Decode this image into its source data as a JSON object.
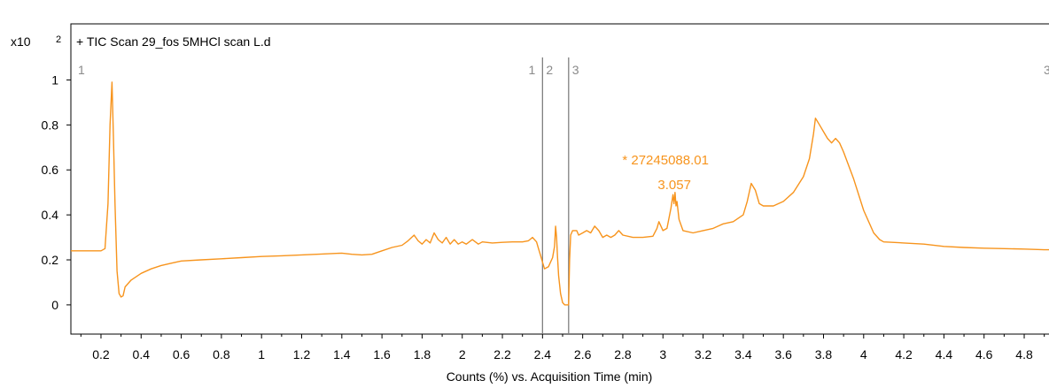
{
  "chart_data": {
    "type": "line",
    "title": "+ TIC Scan 29_fos 5MHCl scan L.d",
    "xlabel": "Counts (%) vs. Acquisition Time (min)",
    "ylabel": "",
    "y_exponent": {
      "base": "x10",
      "power": "2"
    },
    "xlim": [
      0.05,
      4.95
    ],
    "ylim": [
      -0.13,
      1.1
    ],
    "x_ticks": [
      0.2,
      0.4,
      0.6,
      0.8,
      1,
      1.2,
      1.4,
      1.6,
      1.8,
      2,
      2.2,
      2.4,
      2.6,
      2.8,
      3,
      3.2,
      3.4,
      3.6,
      3.8,
      4,
      4.2,
      4.4,
      4.6,
      4.8
    ],
    "x_tick_labels": [
      "0.2",
      "0.4",
      "0.6",
      "0.8",
      "1",
      "1.2",
      "1.4",
      "1.6",
      "1.8",
      "2",
      "2.2",
      "2.4",
      "2.6",
      "2.8",
      "3",
      "3.2",
      "3.4",
      "3.6",
      "3.8",
      "4",
      "4.2",
      "4.4",
      "4.6",
      "4.8"
    ],
    "y_ticks": [
      0,
      0.2,
      0.4,
      0.6,
      0.8,
      1
    ],
    "y_tick_labels": [
      "0",
      "0.2",
      "0.4",
      "0.6",
      "0.8",
      "1"
    ],
    "grid": false,
    "line_color": "#f7941d",
    "annotation_color": "#f7941d",
    "marker_color": "#7f7f7f",
    "segment_markers": [
      {
        "x": 2.4,
        "left_label": "1",
        "right_label": "2"
      },
      {
        "x": 2.53,
        "right_label": "3"
      }
    ],
    "edge_markers": {
      "left_label": "1",
      "right_label": "3"
    },
    "peak_annotation": {
      "x": 3.057,
      "y": 0.5,
      "area_label": "* 27245088.01",
      "rt_label": "3.057"
    },
    "series": [
      {
        "values": [
          [
            0.05,
            0.24
          ],
          [
            0.12,
            0.24
          ],
          [
            0.2,
            0.24
          ],
          [
            0.22,
            0.25
          ],
          [
            0.235,
            0.45
          ],
          [
            0.245,
            0.8
          ],
          [
            0.255,
            0.99
          ],
          [
            0.262,
            0.75
          ],
          [
            0.27,
            0.45
          ],
          [
            0.28,
            0.15
          ],
          [
            0.29,
            0.05
          ],
          [
            0.3,
            0.035
          ],
          [
            0.31,
            0.04
          ],
          [
            0.32,
            0.08
          ],
          [
            0.35,
            0.11
          ],
          [
            0.4,
            0.14
          ],
          [
            0.45,
            0.16
          ],
          [
            0.5,
            0.175
          ],
          [
            0.55,
            0.185
          ],
          [
            0.6,
            0.195
          ],
          [
            0.7,
            0.2
          ],
          [
            0.8,
            0.205
          ],
          [
            0.9,
            0.21
          ],
          [
            1.0,
            0.215
          ],
          [
            1.1,
            0.218
          ],
          [
            1.2,
            0.222
          ],
          [
            1.3,
            0.226
          ],
          [
            1.4,
            0.23
          ],
          [
            1.45,
            0.225
          ],
          [
            1.5,
            0.222
          ],
          [
            1.55,
            0.225
          ],
          [
            1.6,
            0.24
          ],
          [
            1.65,
            0.255
          ],
          [
            1.7,
            0.265
          ],
          [
            1.73,
            0.285
          ],
          [
            1.76,
            0.31
          ],
          [
            1.78,
            0.285
          ],
          [
            1.8,
            0.27
          ],
          [
            1.82,
            0.29
          ],
          [
            1.84,
            0.275
          ],
          [
            1.86,
            0.32
          ],
          [
            1.88,
            0.29
          ],
          [
            1.9,
            0.275
          ],
          [
            1.92,
            0.3
          ],
          [
            1.94,
            0.27
          ],
          [
            1.96,
            0.29
          ],
          [
            1.98,
            0.27
          ],
          [
            2.0,
            0.28
          ],
          [
            2.02,
            0.27
          ],
          [
            2.05,
            0.29
          ],
          [
            2.08,
            0.27
          ],
          [
            2.1,
            0.28
          ],
          [
            2.15,
            0.275
          ],
          [
            2.2,
            0.278
          ],
          [
            2.25,
            0.28
          ],
          [
            2.3,
            0.28
          ],
          [
            2.33,
            0.285
          ],
          [
            2.35,
            0.3
          ],
          [
            2.37,
            0.28
          ],
          [
            2.38,
            0.25
          ],
          [
            2.39,
            0.22
          ],
          [
            2.4,
            0.19
          ],
          [
            2.41,
            0.16
          ],
          [
            2.42,
            0.165
          ],
          [
            2.43,
            0.17
          ],
          [
            2.44,
            0.19
          ],
          [
            2.45,
            0.21
          ],
          [
            2.46,
            0.26
          ],
          [
            2.465,
            0.35
          ],
          [
            2.47,
            0.3
          ],
          [
            2.475,
            0.21
          ],
          [
            2.48,
            0.13
          ],
          [
            2.49,
            0.05
          ],
          [
            2.5,
            0.01
          ],
          [
            2.51,
            0.0
          ],
          [
            2.53,
            0.0
          ],
          [
            2.535,
            0.2
          ],
          [
            2.54,
            0.31
          ],
          [
            2.55,
            0.33
          ],
          [
            2.57,
            0.33
          ],
          [
            2.58,
            0.31
          ],
          [
            2.6,
            0.32
          ],
          [
            2.62,
            0.33
          ],
          [
            2.64,
            0.32
          ],
          [
            2.66,
            0.35
          ],
          [
            2.68,
            0.33
          ],
          [
            2.7,
            0.3
          ],
          [
            2.72,
            0.31
          ],
          [
            2.74,
            0.3
          ],
          [
            2.76,
            0.31
          ],
          [
            2.78,
            0.33
          ],
          [
            2.8,
            0.31
          ],
          [
            2.85,
            0.3
          ],
          [
            2.9,
            0.3
          ],
          [
            2.95,
            0.305
          ],
          [
            2.97,
            0.34
          ],
          [
            2.98,
            0.37
          ],
          [
            3.0,
            0.33
          ],
          [
            3.02,
            0.34
          ],
          [
            3.04,
            0.43
          ],
          [
            3.05,
            0.49
          ],
          [
            3.055,
            0.45
          ],
          [
            3.06,
            0.5
          ],
          [
            3.065,
            0.44
          ],
          [
            3.07,
            0.46
          ],
          [
            3.08,
            0.38
          ],
          [
            3.1,
            0.33
          ],
          [
            3.15,
            0.32
          ],
          [
            3.2,
            0.33
          ],
          [
            3.25,
            0.34
          ],
          [
            3.3,
            0.36
          ],
          [
            3.35,
            0.37
          ],
          [
            3.4,
            0.4
          ],
          [
            3.42,
            0.46
          ],
          [
            3.44,
            0.54
          ],
          [
            3.46,
            0.51
          ],
          [
            3.48,
            0.45
          ],
          [
            3.5,
            0.44
          ],
          [
            3.55,
            0.44
          ],
          [
            3.6,
            0.46
          ],
          [
            3.65,
            0.5
          ],
          [
            3.7,
            0.57
          ],
          [
            3.73,
            0.65
          ],
          [
            3.75,
            0.76
          ],
          [
            3.76,
            0.83
          ],
          [
            3.78,
            0.8
          ],
          [
            3.8,
            0.77
          ],
          [
            3.82,
            0.74
          ],
          [
            3.84,
            0.72
          ],
          [
            3.86,
            0.74
          ],
          [
            3.88,
            0.72
          ],
          [
            3.9,
            0.68
          ],
          [
            3.95,
            0.56
          ],
          [
            4.0,
            0.42
          ],
          [
            4.05,
            0.32
          ],
          [
            4.08,
            0.29
          ],
          [
            4.1,
            0.28
          ],
          [
            4.2,
            0.275
          ],
          [
            4.3,
            0.27
          ],
          [
            4.4,
            0.26
          ],
          [
            4.5,
            0.255
          ],
          [
            4.6,
            0.252
          ],
          [
            4.7,
            0.25
          ],
          [
            4.8,
            0.248
          ],
          [
            4.9,
            0.245
          ],
          [
            4.95,
            0.245
          ]
        ]
      }
    ]
  }
}
